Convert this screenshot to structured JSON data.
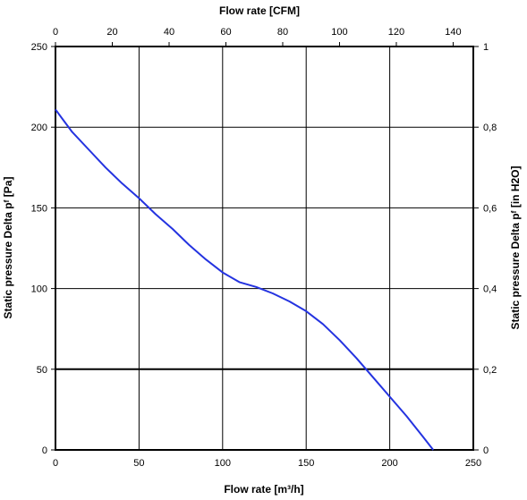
{
  "chart_data": {
    "type": "line",
    "x_bottom": {
      "label": "Flow rate [m³/h]",
      "range": [
        0,
        250
      ],
      "ticks": [
        "0",
        "50",
        "100",
        "150",
        "200",
        "250"
      ]
    },
    "x_top": {
      "label": "Flow rate [CFM]",
      "range": [
        0,
        147.1
      ],
      "ticks": [
        "0",
        "20",
        "40",
        "60",
        "80",
        "100",
        "120",
        "140"
      ]
    },
    "y_left": {
      "label": "Static pressure Delta pᶠ [Pa]",
      "range": [
        0,
        250
      ],
      "ticks": [
        "0",
        "50",
        "100",
        "150",
        "200",
        "250"
      ]
    },
    "y_right": {
      "label": "Static pressure Delta pᶠ [in H2O]",
      "range": [
        0,
        1
      ],
      "ticks": [
        "0",
        "0,2",
        "0,4",
        "0,6",
        "0,8",
        "1"
      ]
    },
    "grid": true,
    "series": [
      {
        "color": "#2433e0",
        "x": [
          0,
          5,
          10,
          20,
          30,
          40,
          50,
          60,
          70,
          80,
          90,
          100,
          110,
          120,
          130,
          140,
          150,
          160,
          170,
          180,
          190,
          200,
          210,
          220,
          226
        ],
        "y": [
          211,
          204,
          197,
          186,
          175,
          165,
          156,
          146,
          137,
          127,
          118,
          110,
          104,
          101,
          97,
          92,
          86,
          78,
          68,
          57,
          45,
          33,
          21,
          8,
          0
        ]
      }
    ]
  }
}
